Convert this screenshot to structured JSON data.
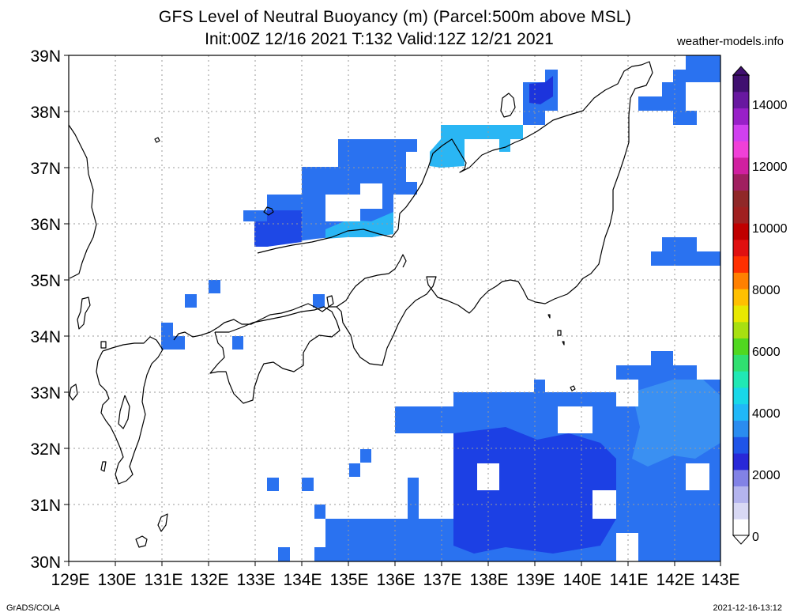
{
  "title": {
    "line1": "GFS Level of Neutral Buoyancy (m) (Parcel:500m above MSL)",
    "line2": "Init:00Z 12/16 2021 T:132 Valid:12Z 12/21 2021"
  },
  "brand": "weather-models.info",
  "footer": {
    "left": "GrADS/COLA",
    "right": "2021-12-16-13:12"
  },
  "lat_labels": [
    "39N",
    "38N",
    "37N",
    "36N",
    "35N",
    "34N",
    "33N",
    "32N",
    "31N",
    "30N"
  ],
  "lon_labels": [
    "129E",
    "130E",
    "131E",
    "132E",
    "133E",
    "134E",
    "135E",
    "136E",
    "137E",
    "138E",
    "139E",
    "140E",
    "141E",
    "142E",
    "143E"
  ],
  "colorbar_labels": [
    "14000",
    "12000",
    "10000",
    "8000",
    "6000",
    "4000",
    "2000",
    "0"
  ],
  "colorbar_colors": [
    "#ffffff",
    "#d8d8f4",
    "#b4b4ee",
    "#8282e6",
    "#2828d8",
    "#1f54e8",
    "#2a8cf0",
    "#20b8f8",
    "#18d8e8",
    "#20e8b4",
    "#30e070",
    "#50d820",
    "#a8e010",
    "#e8e800",
    "#ffc000",
    "#ff8000",
    "#ff3000",
    "#e01010",
    "#c00000",
    "#a02020",
    "#902828",
    "#a02060",
    "#d020a0",
    "#f040d8",
    "#d040f0",
    "#9820c8",
    "#6818a0",
    "#401070"
  ],
  "colors": {
    "blue_dark": "#1c3ce6",
    "blue_mid": "#2468f0",
    "blue_light": "#2f8ef2",
    "cyan": "#22c4f4"
  }
}
